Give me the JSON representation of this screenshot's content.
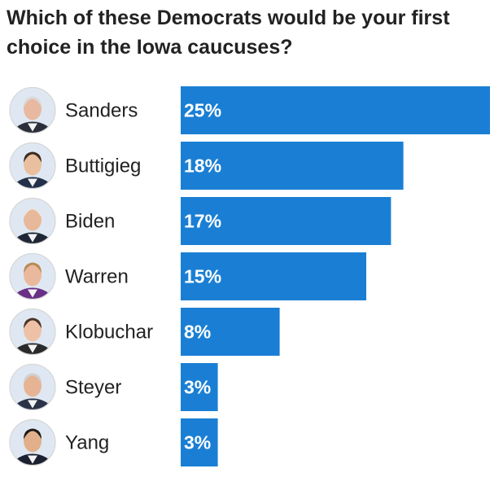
{
  "chart_data": {
    "type": "bar",
    "orientation": "horizontal",
    "title": "Which of these Democrats would be your first choice in the Iowa caucuses?",
    "categories": [
      "Sanders",
      "Buttigieg",
      "Biden",
      "Warren",
      "Klobuchar",
      "Steyer",
      "Yang"
    ],
    "values": [
      25,
      18,
      17,
      15,
      8,
      3,
      3
    ],
    "value_labels": [
      "25%",
      "18%",
      "17%",
      "15%",
      "8%",
      "3%",
      "3%"
    ],
    "unit": "%",
    "xlim": [
      0,
      25
    ],
    "grid": false,
    "legend": "none",
    "colors": {
      "bar": "#1a7fd4",
      "text": "#222222",
      "value_text": "#ffffff"
    },
    "avatars": [
      {
        "icon": "sanders-portrait-icon",
        "skin": "#e8b9a0",
        "hair": "#d9d9d9",
        "shirt": "#2b2f3a"
      },
      {
        "icon": "buttigieg-portrait-icon",
        "skin": "#e9bf9f",
        "hair": "#3b2a20",
        "shirt": "#22304a"
      },
      {
        "icon": "biden-portrait-icon",
        "skin": "#e7b89a",
        "hair": "#e6e6e6",
        "shirt": "#1f2736"
      },
      {
        "icon": "warren-portrait-icon",
        "skin": "#eab99d",
        "hair": "#b98a55",
        "shirt": "#6a2f86"
      },
      {
        "icon": "klobuchar-portrait-icon",
        "skin": "#eec1a6",
        "hair": "#4a3325",
        "shirt": "#2a2a2a"
      },
      {
        "icon": "steyer-portrait-icon",
        "skin": "#e6b494",
        "hair": "#cfcfcf",
        "shirt": "#2a3347"
      },
      {
        "icon": "yang-portrait-icon",
        "skin": "#e1b08a",
        "hair": "#1d1a18",
        "shirt": "#1b2130"
      }
    ]
  }
}
